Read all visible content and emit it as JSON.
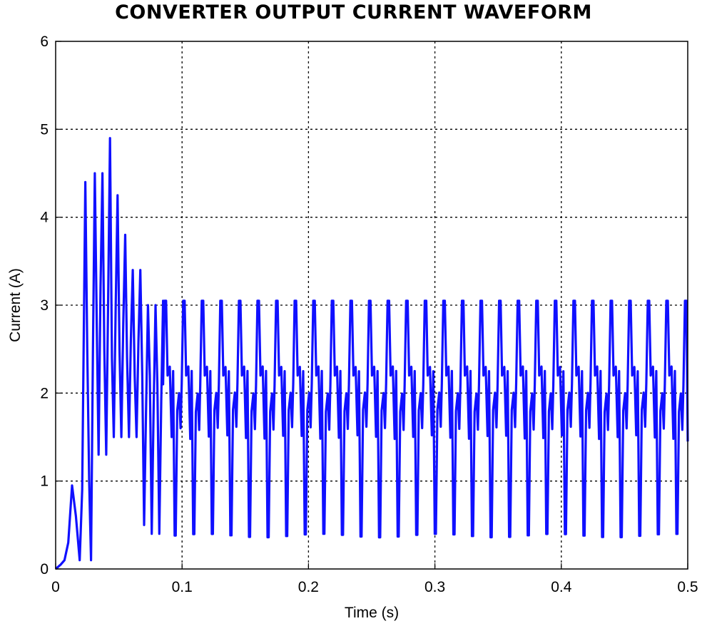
{
  "chart_data": {
    "type": "line",
    "title": "CONVERTER OUTPUT CURRENT WAVEFORM",
    "xlabel": "Time (s)",
    "ylabel": "Current (A)",
    "xlim": [
      0,
      0.5
    ],
    "ylim": [
      0,
      6
    ],
    "x_ticks": [
      "0",
      "0.1",
      "0.2",
      "0.3",
      "0.4",
      "0.5"
    ],
    "y_ticks": [
      "0",
      "1",
      "2",
      "3",
      "4",
      "5",
      "6"
    ],
    "grid": true,
    "grid_style": "dotted",
    "series": [
      {
        "color": "#1010ff",
        "x": [
          0,
          0.004,
          0.007,
          0.01,
          0.013,
          0.016,
          0.019,
          0.021,
          0.0235,
          0.025,
          0.0265,
          0.028,
          0.0295,
          0.031,
          0.0325,
          0.034,
          0.0355,
          0.037,
          0.0385,
          0.04,
          0.0415,
          0.043,
          0.0445,
          0.046,
          0.0475,
          0.049,
          0.0505,
          0.052,
          0.0535,
          0.055,
          0.0565,
          0.058,
          0.0595,
          0.061,
          0.0625,
          0.064,
          0.0655,
          0.067,
          0.0685,
          0.07,
          0.0715,
          0.073,
          0.0745,
          0.076,
          0.0775,
          0.079,
          0.0805,
          0.082,
          0.0835,
          0.085
        ],
        "y": [
          0,
          0.05,
          0.1,
          0.3,
          0.95,
          0.6,
          0.1,
          0.9,
          4.4,
          2.5,
          1.0,
          0.1,
          2.5,
          4.5,
          2.8,
          1.3,
          3.2,
          4.5,
          2.5,
          1.3,
          3.0,
          4.9,
          2.4,
          1.5,
          3.0,
          4.25,
          2.5,
          1.5,
          2.8,
          3.8,
          2.4,
          1.5,
          2.6,
          3.4,
          2.2,
          1.5,
          2.6,
          3.4,
          2.2,
          0.5,
          1.8,
          3.0,
          2.2,
          0.4,
          1.8,
          3.0,
          2.1,
          0.4,
          1.9,
          3.05
        ]
      }
    ],
    "steady_state": {
      "t_start": 0.085,
      "t_end": 0.5,
      "period_s": 0.0147,
      "peak_a": 3.05,
      "trough_a": 0.38,
      "mid_a": 2.2
    }
  }
}
